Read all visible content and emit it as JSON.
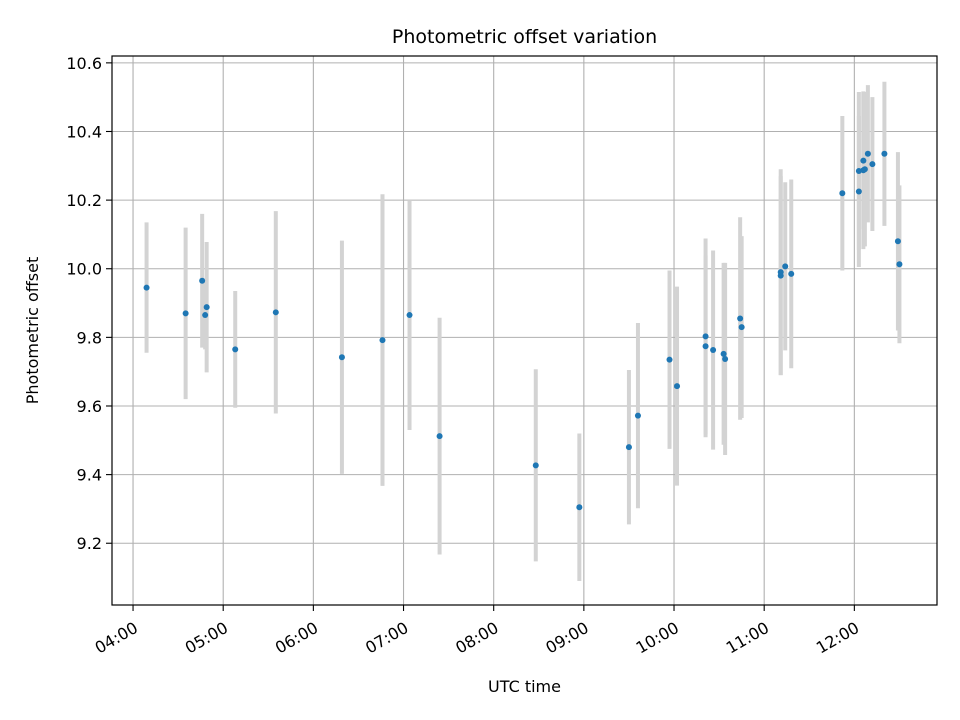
{
  "chart_data": {
    "type": "scatter",
    "title": "Photometric offset variation",
    "xlabel": "UTC time",
    "ylabel": "Photometric offset",
    "x_tick_labels": [
      "04:00",
      "05:00",
      "06:00",
      "07:00",
      "08:00",
      "09:00",
      "10:00",
      "11:00",
      "12:00"
    ],
    "y_ticks": [
      9.2,
      9.4,
      9.6,
      9.8,
      10.0,
      10.2,
      10.4,
      10.6
    ],
    "y_tick_labels": [
      "9.2",
      "9.4",
      "9.6",
      "9.8",
      "10.0",
      "10.2",
      "10.4",
      "10.6"
    ],
    "xlim": [
      "03:46",
      "12:55"
    ],
    "ylim": [
      9.02,
      10.62
    ],
    "grid": true,
    "point_color": "#1f77b4",
    "errorbar_color": "#d3d3d3",
    "points": [
      {
        "time": "04:09",
        "y": 9.945,
        "err": 0.19
      },
      {
        "time": "04:35",
        "y": 9.87,
        "err": 0.25
      },
      {
        "time": "04:46",
        "y": 9.965,
        "err": 0.195
      },
      {
        "time": "04:48",
        "y": 9.865,
        "err": 0.1
      },
      {
        "time": "04:49",
        "y": 9.888,
        "err": 0.19
      },
      {
        "time": "05:08",
        "y": 9.765,
        "err": 0.17
      },
      {
        "time": "05:35",
        "y": 9.873,
        "err": 0.295
      },
      {
        "time": "06:19",
        "y": 9.742,
        "err": 0.34
      },
      {
        "time": "06:46",
        "y": 9.792,
        "err": 0.425
      },
      {
        "time": "07:04",
        "y": 9.865,
        "err": 0.335
      },
      {
        "time": "07:24",
        "y": 9.512,
        "err": 0.345
      },
      {
        "time": "08:28",
        "y": 9.427,
        "err": 0.28
      },
      {
        "time": "08:57",
        "y": 9.305,
        "err": 0.215
      },
      {
        "time": "09:30",
        "y": 9.48,
        "err": 0.225
      },
      {
        "time": "09:36",
        "y": 9.572,
        "err": 0.27
      },
      {
        "time": "09:57",
        "y": 9.735,
        "err": 0.26
      },
      {
        "time": "10:02",
        "y": 9.658,
        "err": 0.29
      },
      {
        "time": "10:21",
        "y": 9.803,
        "err": 0.285
      },
      {
        "time": "10:21",
        "y": 9.774,
        "err": 0.265
      },
      {
        "time": "10:26",
        "y": 9.763,
        "err": 0.29
      },
      {
        "time": "10:33",
        "y": 9.752,
        "err": 0.265
      },
      {
        "time": "10:34",
        "y": 9.737,
        "err": 0.28
      },
      {
        "time": "10:44",
        "y": 9.855,
        "err": 0.295
      },
      {
        "time": "10:45",
        "y": 9.83,
        "err": 0.265
      },
      {
        "time": "11:11",
        "y": 9.99,
        "err": 0.3
      },
      {
        "time": "11:11",
        "y": 9.98,
        "err": 0.29
      },
      {
        "time": "11:14",
        "y": 10.007,
        "err": 0.245
      },
      {
        "time": "11:18",
        "y": 9.985,
        "err": 0.275
      },
      {
        "time": "11:52",
        "y": 10.22,
        "err": 0.225
      },
      {
        "time": "12:03",
        "y": 10.225,
        "err": 0.22
      },
      {
        "time": "12:03",
        "y": 10.285,
        "err": 0.23
      },
      {
        "time": "12:06",
        "y": 10.315,
        "err": 0.2
      },
      {
        "time": "12:06",
        "y": 10.287,
        "err": 0.23
      },
      {
        "time": "12:07",
        "y": 10.29,
        "err": 0.225
      },
      {
        "time": "12:09",
        "y": 10.335,
        "err": 0.2
      },
      {
        "time": "12:12",
        "y": 10.305,
        "err": 0.195
      },
      {
        "time": "12:20",
        "y": 10.335,
        "err": 0.21
      },
      {
        "time": "12:29",
        "y": 10.08,
        "err": 0.26
      },
      {
        "time": "12:30",
        "y": 10.013,
        "err": 0.23
      }
    ]
  }
}
